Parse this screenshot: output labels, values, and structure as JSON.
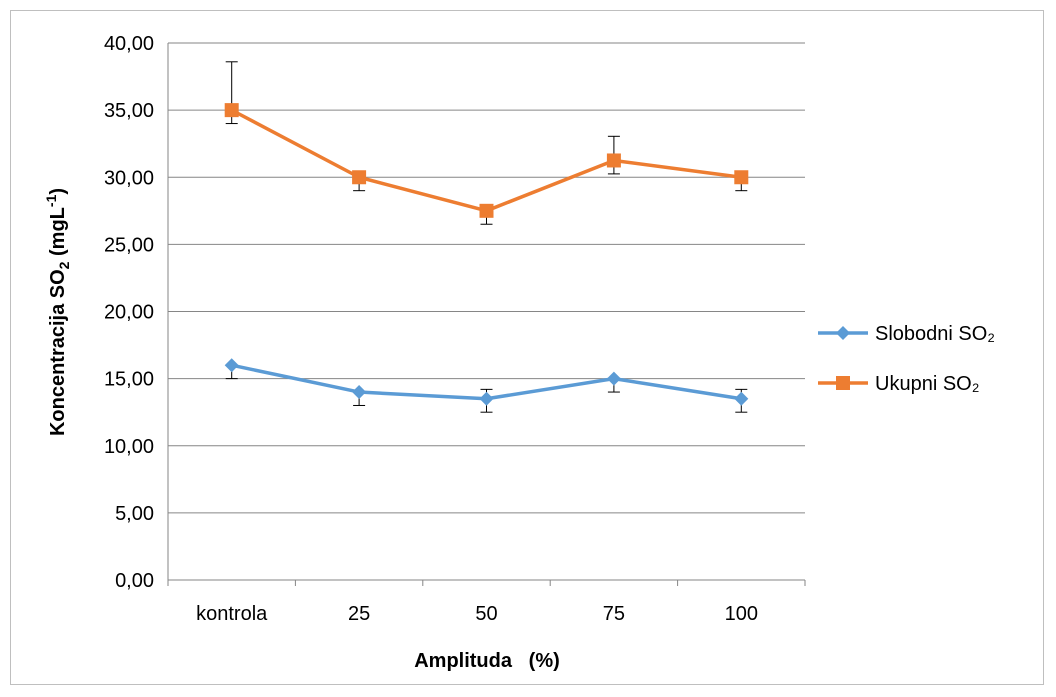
{
  "chart_data": {
    "type": "line",
    "categories": [
      "kontrola",
      "25",
      "50",
      "75",
      "100"
    ],
    "xlabel": "Amplituda   (%)",
    "ylabel": "Koncentracija SO",
    "ylabel_sub": "2",
    "ylabel_unit": " (mgL",
    "ylabel_sup": "-1",
    "ylabel_close": ")",
    "ylim": [
      0,
      40
    ],
    "ytick_step": 5,
    "yticks": [
      "0,00",
      "5,00",
      "10,00",
      "15,00",
      "20,00",
      "25,00",
      "30,00",
      "35,00",
      "40,00"
    ],
    "grid": true,
    "legend_position": "right",
    "series": [
      {
        "name": "Slobodni SO₂",
        "marker": "diamond",
        "color": "#5b9bd5",
        "values": [
          16.0,
          14.0,
          13.5,
          15.0,
          13.5
        ],
        "error_low": [
          1.0,
          1.0,
          1.0,
          1.0,
          1.0
        ],
        "error_high": [
          0.0,
          0.0,
          0.7,
          0.0,
          0.7
        ]
      },
      {
        "name": "Ukupni SO₂",
        "marker": "square",
        "color": "#ed7d31",
        "values": [
          35.0,
          30.0,
          27.5,
          31.25,
          30.0
        ],
        "error_low": [
          1.0,
          1.0,
          1.0,
          1.0,
          1.0
        ],
        "error_high": [
          3.6,
          0.0,
          0.0,
          1.8,
          0.0
        ]
      }
    ]
  }
}
